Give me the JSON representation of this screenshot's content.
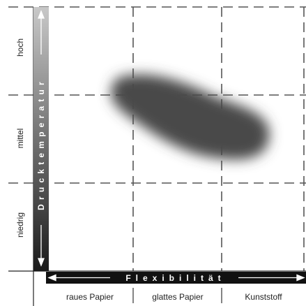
{
  "y_axis": {
    "title": "Drucktemperatur",
    "levels": [
      "hoch",
      "mittel",
      "niedrig"
    ]
  },
  "x_axis": {
    "title": "Flexibilität",
    "categories": [
      "raues Papier",
      "glattes Papier",
      "Kunststoff"
    ]
  },
  "colors": {
    "grid": "#555555",
    "axis_bar": "#111111",
    "blob": "#4a4a4a"
  }
}
